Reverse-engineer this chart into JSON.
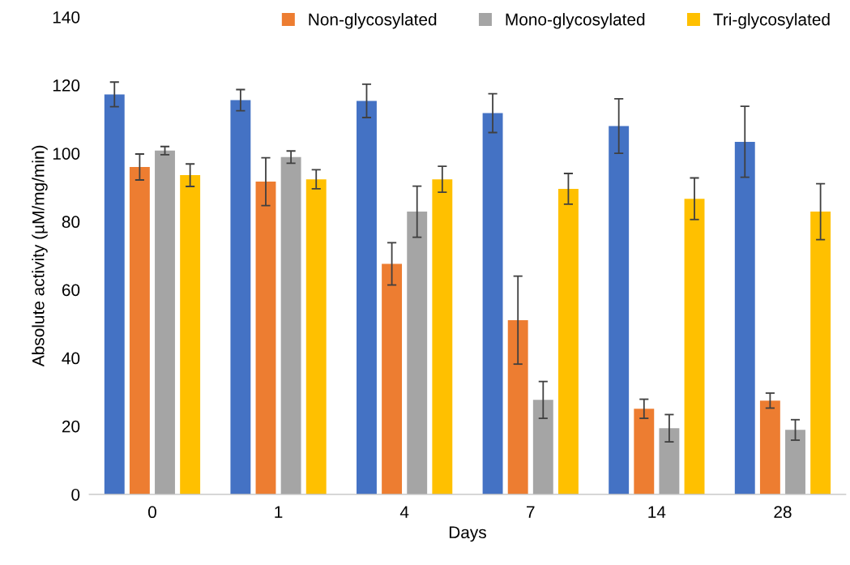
{
  "chart_data": {
    "type": "bar",
    "xlabel": "Days",
    "ylabel": "Absolute activity (µM/mg/min)",
    "categories": [
      "0",
      "1",
      "4",
      "7",
      "14",
      "28"
    ],
    "series": [
      {
        "color": "#4472c4",
        "values": [
          117.3,
          115.6,
          115.4,
          111.8,
          108,
          103.4
        ],
        "errors": [
          3.6,
          3.1,
          4.9,
          5.7,
          8,
          10.4
        ]
      },
      {
        "name": "Non-glycosylated",
        "color": "#ed7d31",
        "values": [
          96,
          91.7,
          67.6,
          51.1,
          25.1,
          27.5
        ],
        "errors": [
          3.8,
          7,
          6.2,
          12.9,
          2.8,
          2.2
        ]
      },
      {
        "name": "Mono-glycosylated",
        "color": "#a5a5a5",
        "values": [
          100.8,
          98.9,
          82.9,
          27.7,
          19.4,
          18.9
        ],
        "errors": [
          1.2,
          1.8,
          7.5,
          5.4,
          4,
          3
        ]
      },
      {
        "name": "Tri-glycosylated",
        "color": "#ffc000",
        "values": [
          93.6,
          92.4,
          92.4,
          89.6,
          86.7,
          82.9
        ],
        "errors": [
          3.3,
          2.8,
          3.8,
          4.5,
          6.1,
          8.2
        ]
      }
    ],
    "ylim": [
      0,
      140
    ],
    "yticks": [
      0,
      20,
      40,
      60,
      80,
      100,
      120,
      140
    ],
    "grid": false,
    "legend": "top"
  }
}
